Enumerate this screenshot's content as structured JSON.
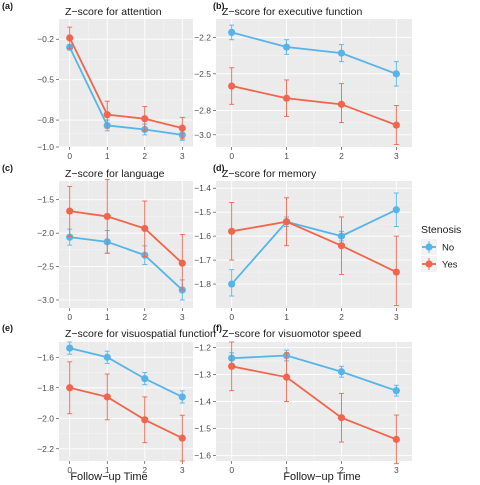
{
  "colors": {
    "No": "#56B4E9",
    "Yes": "#F0654D"
  },
  "legend": {
    "title": "Stenosis",
    "items": [
      "No",
      "Yes"
    ]
  },
  "xlabel": "Follow−up Time",
  "chart_data": [
    {
      "type": "line",
      "tag": "(a)",
      "title": "Z−score for attention",
      "x": [
        0,
        1,
        2,
        3
      ],
      "ylim": [
        -1.0,
        -0.05
      ],
      "yticks": [
        -0.2,
        -0.5,
        -0.8,
        -1.0
      ],
      "ytick_labels": [
        "−0.2",
        "−0.5",
        "−0.8",
        "−1.0"
      ],
      "series": [
        {
          "name": "No",
          "values": [
            -0.26,
            -0.84,
            -0.87,
            -0.91
          ],
          "lower": [
            -0.28,
            -0.88,
            -0.91,
            -0.95
          ],
          "upper": [
            -0.24,
            -0.8,
            -0.83,
            -0.87
          ]
        },
        {
          "name": "Yes",
          "values": [
            -0.19,
            -0.76,
            -0.79,
            -0.86
          ],
          "lower": [
            -0.27,
            -0.86,
            -0.88,
            -0.94
          ],
          "upper": [
            -0.11,
            -0.66,
            -0.7,
            -0.78
          ]
        }
      ]
    },
    {
      "type": "line",
      "tag": "(b)",
      "title": "Z−score for executive function",
      "x": [
        0,
        1,
        2,
        3
      ],
      "ylim": [
        -3.1,
        -2.05
      ],
      "yticks": [
        -2.2,
        -2.5,
        -2.8,
        -3.0
      ],
      "ytick_labels": [
        "−2.2",
        "−2.5",
        "−2.8",
        "−3.0"
      ],
      "series": [
        {
          "name": "No",
          "values": [
            -2.16,
            -2.28,
            -2.33,
            -2.5
          ],
          "lower": [
            -2.22,
            -2.34,
            -2.4,
            -2.6
          ],
          "upper": [
            -2.1,
            -2.22,
            -2.26,
            -2.4
          ]
        },
        {
          "name": "Yes",
          "values": [
            -2.6,
            -2.7,
            -2.75,
            -2.92
          ],
          "lower": [
            -2.75,
            -2.85,
            -2.9,
            -3.08
          ],
          "upper": [
            -2.45,
            -2.55,
            -2.58,
            -2.76
          ]
        }
      ]
    },
    {
      "type": "line",
      "tag": "(c)",
      "title": "Z−score for language",
      "x": [
        0,
        1,
        2,
        3
      ],
      "ylim": [
        -3.12,
        -1.22
      ],
      "yticks": [
        -1.5,
        -2.0,
        -2.5,
        -3.0
      ],
      "ytick_labels": [
        "−1.5",
        "−2.0",
        "−2.5",
        "−3.0"
      ],
      "series": [
        {
          "name": "No",
          "values": [
            -2.06,
            -2.13,
            -2.33,
            -2.85
          ],
          "lower": [
            -2.18,
            -2.3,
            -2.47,
            -3.0
          ],
          "upper": [
            -1.94,
            -1.96,
            -2.19,
            -2.7
          ]
        },
        {
          "name": "Yes",
          "values": [
            -1.67,
            -1.75,
            -1.93,
            -2.45
          ],
          "lower": [
            -2.05,
            -2.3,
            -2.35,
            -2.85
          ],
          "upper": [
            -1.3,
            -1.2,
            -1.52,
            -2.02
          ]
        }
      ]
    },
    {
      "type": "line",
      "tag": "(d)",
      "title": "Z−score for memory",
      "x": [
        0,
        1,
        2,
        3
      ],
      "ylim": [
        -1.9,
        -1.37
      ],
      "yticks": [
        -1.4,
        -1.5,
        -1.6,
        -1.7,
        -1.8
      ],
      "ytick_labels": [
        "−1.4",
        "−1.5",
        "−1.6",
        "−1.7",
        "−1.8"
      ],
      "series": [
        {
          "name": "No",
          "values": [
            -1.8,
            -1.54,
            -1.6,
            -1.49
          ],
          "lower": [
            -1.85,
            -1.56,
            -1.62,
            -1.56
          ],
          "upper": [
            -1.74,
            -1.52,
            -1.58,
            -1.42
          ]
        },
        {
          "name": "Yes",
          "values": [
            -1.58,
            -1.54,
            -1.64,
            -1.75
          ],
          "lower": [
            -1.7,
            -1.64,
            -1.76,
            -1.89
          ],
          "upper": [
            -1.46,
            -1.44,
            -1.52,
            -1.6
          ]
        }
      ]
    },
    {
      "type": "line",
      "tag": "(e)",
      "title": "Z−score for visuospatial function",
      "x": [
        0,
        1,
        2,
        3
      ],
      "ylim": [
        -2.28,
        -1.5
      ],
      "yticks": [
        -1.6,
        -1.8,
        -2.0,
        -2.2
      ],
      "ytick_labels": [
        "−1.6",
        "−1.8",
        "−2.0",
        "−2.2"
      ],
      "series": [
        {
          "name": "No",
          "values": [
            -1.54,
            -1.6,
            -1.74,
            -1.86
          ],
          "lower": [
            -1.58,
            -1.64,
            -1.78,
            -1.9
          ],
          "upper": [
            -1.5,
            -1.56,
            -1.7,
            -1.82
          ]
        },
        {
          "name": "Yes",
          "values": [
            -1.8,
            -1.86,
            -2.01,
            -2.13
          ],
          "lower": [
            -1.97,
            -2.01,
            -2.16,
            -2.28
          ],
          "upper": [
            -1.63,
            -1.71,
            -1.86,
            -1.98
          ]
        }
      ]
    },
    {
      "type": "line",
      "tag": "(f)",
      "title": "Z−score for visuomotor speed",
      "x": [
        0,
        1,
        2,
        3
      ],
      "ylim": [
        -1.62,
        -1.18
      ],
      "yticks": [
        -1.2,
        -1.3,
        -1.4,
        -1.5,
        -1.6
      ],
      "ytick_labels": [
        "−1.2",
        "−1.3",
        "−1.4",
        "−1.5",
        "−1.6"
      ],
      "series": [
        {
          "name": "No",
          "values": [
            -1.24,
            -1.23,
            -1.29,
            -1.36
          ],
          "lower": [
            -1.26,
            -1.25,
            -1.31,
            -1.38
          ],
          "upper": [
            -1.22,
            -1.21,
            -1.27,
            -1.34
          ]
        },
        {
          "name": "Yes",
          "values": [
            -1.27,
            -1.31,
            -1.46,
            -1.54
          ],
          "lower": [
            -1.36,
            -1.4,
            -1.55,
            -1.63
          ],
          "upper": [
            -1.18,
            -1.22,
            -1.37,
            -1.45
          ]
        }
      ]
    }
  ]
}
